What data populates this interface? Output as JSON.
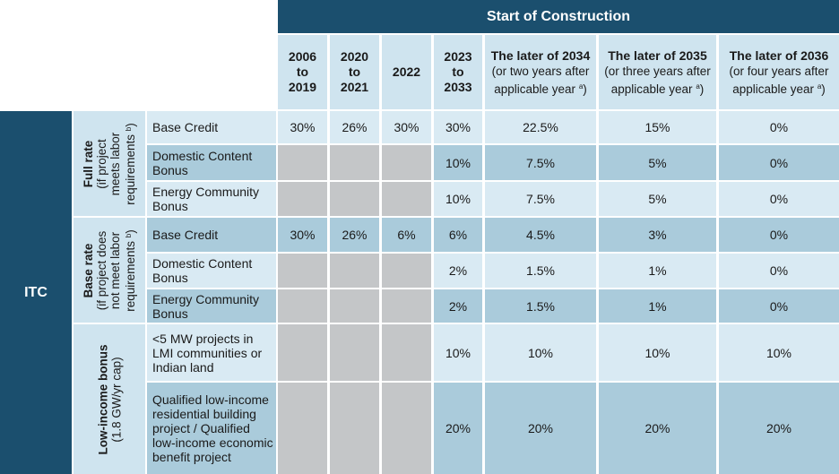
{
  "banner": "Start of Construction",
  "columns": [
    {
      "line1": "2006",
      "line2": "to",
      "line3": "2019"
    },
    {
      "line1": "2020",
      "line2": "to",
      "line3": "2021"
    },
    {
      "line1": "2022",
      "line2": "",
      "line3": ""
    },
    {
      "line1": "2023",
      "line2": "to",
      "line3": "2033"
    },
    {
      "title": "The later of 2034",
      "sub1": "(or two years after",
      "sub2": "applicable year",
      "sup": "a",
      "close": ")"
    },
    {
      "title": "The later of 2035",
      "sub1": "(or three years after",
      "sub2": "applicable year",
      "sup": "a",
      "close": ")"
    },
    {
      "title": "The later of 2036",
      "sub1": "(or four years after",
      "sub2": "applicable year",
      "sup": "a",
      "close": ")"
    }
  ],
  "category": "ITC",
  "groups": [
    {
      "title": "Full rate",
      "sub1": "(if project",
      "sub2": "meets labor",
      "sub3": "requirements",
      "sup": "b",
      "close": ")"
    },
    {
      "title": "Base rate",
      "sub1": "(if project does",
      "sub2": "not meet labor",
      "sub3": "requirements",
      "sup": "b",
      "close": ")"
    },
    {
      "title": "Low-income bonus",
      "sub1": "(1.8 GW/yr cap)"
    }
  ],
  "rows": [
    {
      "label": "Base Credit",
      "values": [
        "30%",
        "26%",
        "30%",
        "30%",
        "22.5%",
        "15%",
        "0%"
      ]
    },
    {
      "label": "Domestic Content Bonus",
      "values": [
        "",
        "",
        "",
        "10%",
        "7.5%",
        "5%",
        "0%"
      ]
    },
    {
      "label": "Energy Community Bonus",
      "values": [
        "",
        "",
        "",
        "10%",
        "7.5%",
        "5%",
        "0%"
      ]
    },
    {
      "label": "Base Credit",
      "values": [
        "30%",
        "26%",
        "6%",
        "6%",
        "4.5%",
        "3%",
        "0%"
      ]
    },
    {
      "label": "Domestic Content Bonus",
      "values": [
        "",
        "",
        "",
        "2%",
        "1.5%",
        "1%",
        "0%"
      ]
    },
    {
      "label": "Energy Community Bonus",
      "values": [
        "",
        "",
        "",
        "2%",
        "1.5%",
        "1%",
        "0%"
      ]
    },
    {
      "label": "<5 MW projects in LMI communities or Indian land",
      "values": [
        "",
        "",
        "",
        "10%",
        "10%",
        "10%",
        "10%"
      ]
    },
    {
      "label": "Qualified low-income residential building project / Qualified low-income economic benefit project",
      "values": [
        "",
        "",
        "",
        "20%",
        "20%",
        "20%",
        "20%"
      ]
    }
  ],
  "colors": {
    "dark_blue": "#1b4f6e",
    "light_blue": "#d9eaf3",
    "mid_blue": "#aacbdb",
    "gray": "#c4c6c8"
  }
}
